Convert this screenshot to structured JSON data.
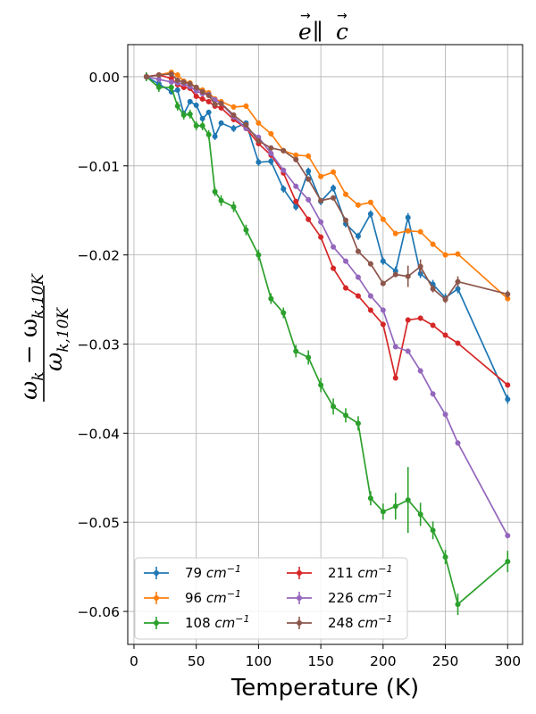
{
  "chart_data": {
    "type": "line",
    "title": "e ∥ c",
    "title_vec_left": "e",
    "title_parallel": "∥",
    "title_vec_right": "c",
    "xlabel": "Temperature (K)",
    "ylabel": "(ω_k − ω_k,10K) / ω_k,10K",
    "ylabel_num_main": "ω",
    "ylabel_num_sub1": "k",
    "ylabel_num_minus": " − ω",
    "ylabel_num_sub2": "k,10K",
    "ylabel_den_main": "ω",
    "ylabel_den_sub": "k,10K",
    "xlim": [
      -5,
      312
    ],
    "ylim": [
      -0.0637,
      0.0036
    ],
    "xticks": [
      0,
      50,
      100,
      150,
      200,
      250,
      300
    ],
    "xtick_labels": [
      "0",
      "50",
      "100",
      "150",
      "200",
      "250",
      "300"
    ],
    "yticks": [
      0.0,
      -0.01,
      -0.02,
      -0.03,
      -0.04,
      -0.05,
      -0.06
    ],
    "ytick_labels": [
      "0.00",
      "−0.01",
      "−0.02",
      "−0.03",
      "−0.04",
      "−0.05",
      "−0.06"
    ],
    "grid": true,
    "legend_position": "lower-left",
    "series": [
      {
        "name": "79 cm⁻¹",
        "unit_base": "79",
        "color": "#1f77b4",
        "x": [
          10,
          20,
          30,
          35,
          40,
          45,
          50,
          55,
          60,
          65,
          70,
          80,
          90,
          100,
          110,
          120,
          130,
          140,
          150,
          160,
          170,
          180,
          190,
          200,
          210,
          220,
          230,
          240,
          250,
          260,
          300
        ],
        "y": [
          0.0,
          -0.0008,
          -0.0017,
          -0.0015,
          -0.0042,
          -0.0028,
          -0.0032,
          -0.0047,
          -0.004,
          -0.0067,
          -0.0052,
          -0.0058,
          -0.0052,
          -0.0096,
          -0.0095,
          -0.0126,
          -0.0146,
          -0.0106,
          -0.014,
          -0.0125,
          -0.0165,
          -0.0179,
          -0.0154,
          -0.0207,
          -0.0218,
          -0.0158,
          -0.0221,
          -0.0233,
          -0.0248,
          -0.0238,
          -0.0362
        ],
        "err": [
          0.0004,
          0.0003,
          0.0003,
          0.0003,
          0.0003,
          0.0003,
          0.0003,
          0.0003,
          0.0003,
          0.0004,
          0.0003,
          0.0004,
          0.0003,
          0.0004,
          0.0004,
          0.0004,
          0.0004,
          0.0004,
          0.0004,
          0.0004,
          0.0004,
          0.0004,
          0.0004,
          0.0004,
          0.0005,
          0.0005,
          0.0005,
          0.0005,
          0.0005,
          0.0005,
          0.0005
        ]
      },
      {
        "name": "96 cm⁻¹",
        "unit_base": "96",
        "color": "#ff7f0e",
        "x": [
          10,
          20,
          30,
          35,
          40,
          45,
          50,
          55,
          60,
          65,
          70,
          80,
          90,
          100,
          110,
          120,
          130,
          140,
          150,
          160,
          170,
          180,
          190,
          200,
          210,
          220,
          230,
          240,
          250,
          260,
          300
        ],
        "y": [
          0.0,
          0.0002,
          0.0005,
          0.0002,
          -0.0005,
          -0.0007,
          -0.0012,
          -0.0015,
          -0.0018,
          -0.0025,
          -0.0028,
          -0.0034,
          -0.0033,
          -0.0052,
          -0.0064,
          -0.0083,
          -0.0088,
          -0.0089,
          -0.0112,
          -0.0107,
          -0.0132,
          -0.0144,
          -0.0141,
          -0.016,
          -0.0176,
          -0.0173,
          -0.0174,
          -0.0188,
          -0.02,
          -0.0199,
          -0.0249
        ],
        "err": [
          0.0003,
          0.0003,
          0.0003,
          0.0003,
          0.0003,
          0.0003,
          0.0003,
          0.0003,
          0.0003,
          0.0003,
          0.0003,
          0.0003,
          0.0003,
          0.0003,
          0.0003,
          0.0003,
          0.0003,
          0.0003,
          0.0003,
          0.0003,
          0.0003,
          0.0003,
          0.0003,
          0.0003,
          0.0003,
          0.0003,
          0.0003,
          0.0003,
          0.0003,
          0.0003,
          0.0003
        ]
      },
      {
        "name": "108 cm⁻¹",
        "unit_base": "108",
        "color": "#2ca02c",
        "x": [
          10,
          20,
          30,
          35,
          40,
          45,
          50,
          55,
          60,
          65,
          70,
          80,
          90,
          100,
          110,
          120,
          130,
          140,
          150,
          160,
          170,
          180,
          190,
          200,
          210,
          220,
          230,
          240,
          250,
          260,
          300
        ],
        "y": [
          0.0,
          -0.0012,
          -0.0012,
          -0.0033,
          -0.0043,
          -0.0042,
          -0.0055,
          -0.0055,
          -0.0065,
          -0.0129,
          -0.0139,
          -0.0146,
          -0.0172,
          -0.02,
          -0.0249,
          -0.0265,
          -0.0308,
          -0.0315,
          -0.0346,
          -0.037,
          -0.038,
          -0.0389,
          -0.0473,
          -0.0488,
          -0.0482,
          -0.0475,
          -0.0491,
          -0.0509,
          -0.0539,
          -0.0592,
          -0.0544
        ],
        "err": [
          0.0005,
          0.0005,
          0.0005,
          0.0005,
          0.0005,
          0.0005,
          0.0005,
          0.0005,
          0.0005,
          0.0005,
          0.0006,
          0.0006,
          0.0006,
          0.0006,
          0.0006,
          0.0006,
          0.0007,
          0.0008,
          0.0008,
          0.0009,
          0.0008,
          0.0008,
          0.0008,
          0.0009,
          0.0015,
          0.0037,
          0.0013,
          0.001,
          0.0008,
          0.0012,
          0.0012
        ]
      },
      {
        "name": "211 cm⁻¹",
        "unit_base": "211",
        "color": "#d62728",
        "x": [
          10,
          20,
          30,
          35,
          40,
          45,
          50,
          55,
          60,
          65,
          70,
          80,
          90,
          100,
          110,
          120,
          130,
          140,
          150,
          160,
          170,
          180,
          190,
          200,
          210,
          220,
          230,
          240,
          250,
          260,
          300
        ],
        "y": [
          0.0,
          0.0002,
          -0.0002,
          -0.0009,
          -0.0012,
          -0.0013,
          -0.0022,
          -0.0025,
          -0.0028,
          -0.0033,
          -0.0035,
          -0.0048,
          -0.0058,
          -0.0075,
          -0.0088,
          -0.0108,
          -0.014,
          -0.016,
          -0.018,
          -0.0215,
          -0.0237,
          -0.0246,
          -0.0262,
          -0.0278,
          -0.0338,
          -0.0273,
          -0.0271,
          -0.0279,
          -0.029,
          -0.0299,
          -0.0346
        ],
        "err": [
          0.0003,
          0.0003,
          0.0003,
          0.0003,
          0.0003,
          0.0003,
          0.0003,
          0.0003,
          0.0003,
          0.0003,
          0.0003,
          0.0003,
          0.0003,
          0.0003,
          0.0003,
          0.0003,
          0.0003,
          0.0003,
          0.0003,
          0.0003,
          0.0003,
          0.0003,
          0.0003,
          0.0003,
          0.0003,
          0.0003,
          0.0003,
          0.0003,
          0.0003,
          0.0003,
          0.0003
        ]
      },
      {
        "name": "226 cm⁻¹",
        "unit_base": "226",
        "color": "#9467bd",
        "x": [
          10,
          20,
          30,
          35,
          40,
          45,
          50,
          55,
          60,
          65,
          70,
          80,
          90,
          100,
          110,
          120,
          130,
          140,
          150,
          160,
          170,
          180,
          190,
          200,
          210,
          220,
          230,
          240,
          250,
          260,
          300
        ],
        "y": [
          0.0,
          -0.0003,
          -0.0006,
          -0.0007,
          -0.0008,
          -0.0011,
          -0.0016,
          -0.0019,
          -0.002,
          -0.0026,
          -0.003,
          -0.0045,
          -0.0058,
          -0.0068,
          -0.0086,
          -0.0105,
          -0.0123,
          -0.0138,
          -0.0163,
          -0.0191,
          -0.0207,
          -0.0225,
          -0.0246,
          -0.0262,
          -0.0303,
          -0.0308,
          -0.033,
          -0.0356,
          -0.0379,
          -0.0411,
          -0.0515
        ],
        "err": [
          0.0003,
          0.0003,
          0.0003,
          0.0003,
          0.0003,
          0.0003,
          0.0003,
          0.0003,
          0.0003,
          0.0003,
          0.0003,
          0.0003,
          0.0003,
          0.0003,
          0.0003,
          0.0003,
          0.0003,
          0.0003,
          0.0003,
          0.0003,
          0.0003,
          0.0003,
          0.0003,
          0.0003,
          0.0003,
          0.0003,
          0.0003,
          0.0003,
          0.0003,
          0.0003,
          0.0003
        ]
      },
      {
        "name": "248 cm⁻¹",
        "unit_base": "248",
        "color": "#8c564b",
        "x": [
          10,
          20,
          30,
          35,
          40,
          45,
          50,
          55,
          60,
          65,
          70,
          80,
          90,
          100,
          110,
          120,
          130,
          140,
          150,
          160,
          170,
          180,
          190,
          200,
          210,
          220,
          230,
          240,
          250,
          260,
          300
        ],
        "y": [
          0.0,
          0.0002,
          0.0003,
          -0.0004,
          -0.0006,
          -0.0008,
          -0.0012,
          -0.0017,
          -0.0021,
          -0.0031,
          -0.003,
          -0.0043,
          -0.0054,
          -0.0072,
          -0.008,
          -0.0083,
          -0.0093,
          -0.0115,
          -0.0139,
          -0.0136,
          -0.0161,
          -0.0196,
          -0.021,
          -0.0232,
          -0.0222,
          -0.0224,
          -0.0213,
          -0.0238,
          -0.025,
          -0.023,
          -0.0244
        ],
        "err": [
          0.0003,
          0.0003,
          0.0003,
          0.0003,
          0.0003,
          0.0003,
          0.0003,
          0.0003,
          0.0003,
          0.0003,
          0.0003,
          0.0003,
          0.0003,
          0.0003,
          0.0003,
          0.0003,
          0.0003,
          0.0003,
          0.0003,
          0.0003,
          0.0003,
          0.0003,
          0.0003,
          0.0003,
          0.0003,
          0.0012,
          0.0008,
          0.0004,
          0.0004,
          0.0006,
          0.0004
        ]
      }
    ]
  }
}
